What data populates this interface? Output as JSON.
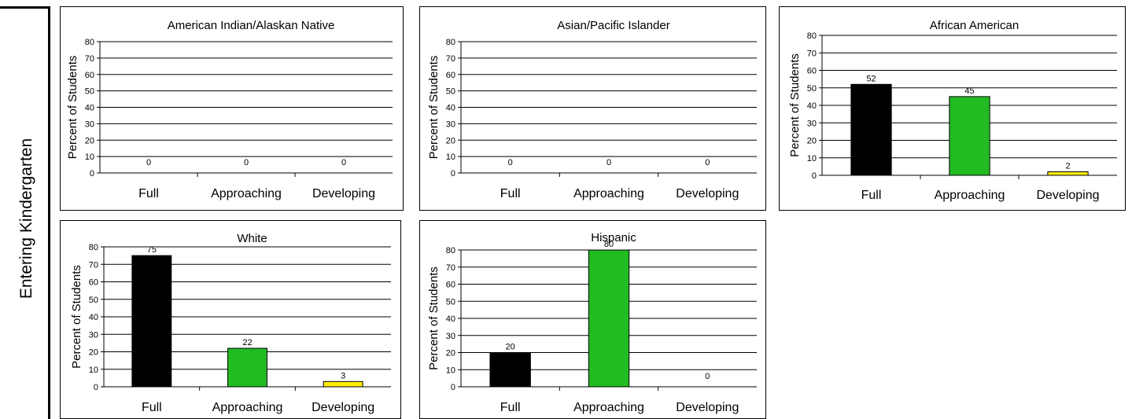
{
  "side_label": "Entering Kindergarten",
  "chart_data": [
    {
      "type": "bar",
      "title": "American Indian/Alaskan Native",
      "ylabel": "Percent of Students",
      "xlabel": "",
      "categories": [
        "Full",
        "Approaching",
        "Developing"
      ],
      "values": [
        0,
        0,
        0
      ],
      "ylim": [
        0,
        80
      ],
      "yticks": [
        0,
        10,
        20,
        30,
        40,
        50,
        60,
        70,
        80
      ],
      "bar_colors": [
        "#000000",
        "#22bb22",
        "#ffee00"
      ],
      "grid": true,
      "legend": "none"
    },
    {
      "type": "bar",
      "title": "Asian/Pacific Islander",
      "ylabel": "Percent of Students",
      "xlabel": "",
      "categories": [
        "Full",
        "Approaching",
        "Developing"
      ],
      "values": [
        0,
        0,
        0
      ],
      "ylim": [
        0,
        80
      ],
      "yticks": [
        0,
        10,
        20,
        30,
        40,
        50,
        60,
        70,
        80
      ],
      "bar_colors": [
        "#000000",
        "#22bb22",
        "#ffee00"
      ],
      "grid": true,
      "legend": "none"
    },
    {
      "type": "bar",
      "title": "African American",
      "ylabel": "Percent of Students",
      "xlabel": "",
      "categories": [
        "Full",
        "Approaching",
        "Developing"
      ],
      "values": [
        52,
        45,
        2
      ],
      "ylim": [
        0,
        80
      ],
      "yticks": [
        0,
        10,
        20,
        30,
        40,
        50,
        60,
        70,
        80
      ],
      "bar_colors": [
        "#000000",
        "#22bb22",
        "#ffee00"
      ],
      "grid": true,
      "legend": "none"
    },
    {
      "type": "bar",
      "title": "White",
      "ylabel": "Percent of Students",
      "xlabel": "",
      "categories": [
        "Full",
        "Approaching",
        "Developing"
      ],
      "values": [
        75,
        22,
        3
      ],
      "ylim": [
        0,
        80
      ],
      "yticks": [
        0,
        10,
        20,
        30,
        40,
        50,
        60,
        70,
        80
      ],
      "bar_colors": [
        "#000000",
        "#22bb22",
        "#ffee00"
      ],
      "grid": true,
      "legend": "none"
    },
    {
      "type": "bar",
      "title": "Hispanic",
      "ylabel": "Percent of Students",
      "xlabel": "",
      "categories": [
        "Full",
        "Approaching",
        "Developing"
      ],
      "values": [
        20,
        80,
        0
      ],
      "ylim": [
        0,
        80
      ],
      "yticks": [
        0,
        10,
        20,
        30,
        40,
        50,
        60,
        70,
        80
      ],
      "bar_colors": [
        "#000000",
        "#22bb22",
        "#ffee00"
      ],
      "grid": true,
      "legend": "none"
    }
  ]
}
